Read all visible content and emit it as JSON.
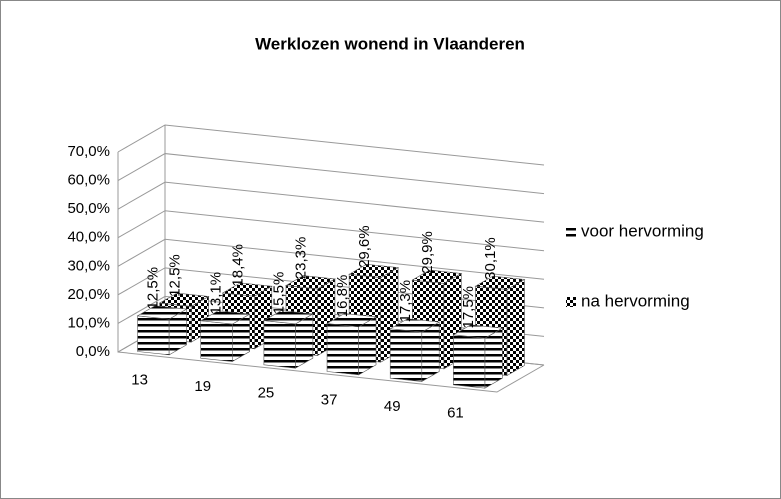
{
  "chart_data": {
    "type": "bar3d",
    "title": "Werklozen wonend in Vlaanderen",
    "categories": [
      "13",
      "19",
      "25",
      "37",
      "49",
      "61"
    ],
    "series": [
      {
        "name": "voor hervorming",
        "color": "#000000",
        "pattern": "stripes",
        "values": [
          12.5,
          13.1,
          15.5,
          16.8,
          17.3,
          17.5
        ],
        "value_labels": [
          "12,5%",
          "13,1%",
          "15,5%",
          "16,8%",
          "17,3%",
          "17,5%"
        ]
      },
      {
        "name": "na hervorming",
        "color": "#000000",
        "pattern": "checker",
        "values": [
          12.5,
          18.4,
          23.3,
          29.6,
          29.9,
          30.1
        ],
        "value_labels": [
          "12,5%",
          "18,4%",
          "23,3%",
          "29,6%",
          "29,9%",
          "30,1%"
        ]
      }
    ],
    "ylim": [
      0,
      70
    ],
    "yticks": [
      {
        "value": 0,
        "label": "0,0%"
      },
      {
        "value": 10,
        "label": "10,0%"
      },
      {
        "value": 20,
        "label": "20,0%"
      },
      {
        "value": 30,
        "label": "30,0%"
      },
      {
        "value": 40,
        "label": "40,0%"
      },
      {
        "value": 50,
        "label": "50,0%"
      },
      {
        "value": 60,
        "label": "60,0%"
      },
      {
        "value": 70,
        "label": "70,0%"
      }
    ],
    "grid": true,
    "legend": "right"
  }
}
